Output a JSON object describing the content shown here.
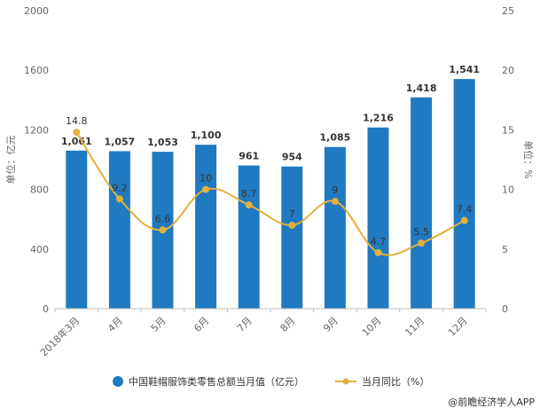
{
  "chart_data": {
    "type": "bar",
    "categories": [
      "2018年3月",
      "4月",
      "5月",
      "6月",
      "7月",
      "8月",
      "9月",
      "10月",
      "11月",
      "12月"
    ],
    "series": [
      {
        "name": "中国鞋帽服饰类零售总额当月值（亿元）",
        "type": "bar",
        "axis": "left",
        "values": [
          1061,
          1057,
          1053,
          1100,
          961,
          954,
          1085,
          1216,
          1418,
          1541
        ],
        "labels": [
          "1,061",
          "1,057",
          "1,053",
          "1,100",
          "961",
          "954",
          "1,085",
          "1,216",
          "1,418",
          "1,541"
        ],
        "color": "#1f7ac2"
      },
      {
        "name": "当月同比（%）",
        "type": "line",
        "axis": "right",
        "values": [
          14.8,
          9.2,
          6.6,
          10,
          8.7,
          7,
          9,
          4.7,
          5.5,
          7.4
        ],
        "labels": [
          "14.8",
          "9.2",
          "6.6",
          "10",
          "8.7",
          "7",
          "9",
          "4.7",
          "5.5",
          "7.4"
        ],
        "color": "#e3b03a"
      }
    ],
    "ylabel": "单位：亿元",
    "y2label": "单位：%",
    "ylim": [
      0,
      2000
    ],
    "y2lim": [
      0,
      25
    ],
    "yticks": [
      "0",
      "400",
      "800",
      "1200",
      "1600",
      "2000"
    ],
    "y2ticks": [
      "0",
      "5",
      "10",
      "15",
      "20",
      "25"
    ],
    "grid": false,
    "legend_position": "bottom"
  },
  "source": "@前瞻经济学人APP"
}
